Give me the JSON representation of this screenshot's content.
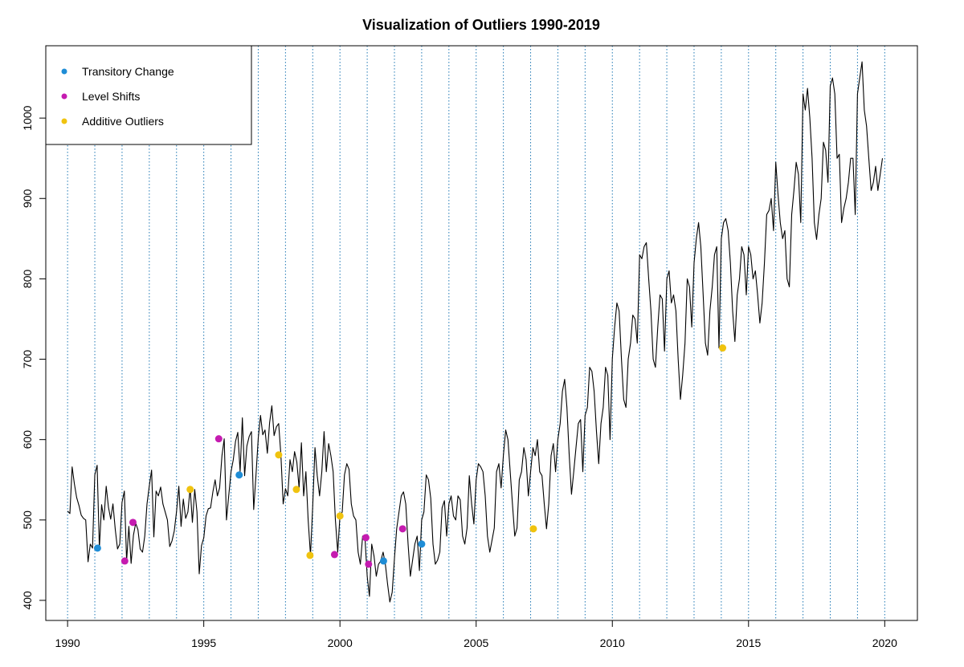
{
  "chart_data": {
    "type": "line",
    "title": "Visualization of Outliers 1990-2019",
    "xlabel": "",
    "ylabel": "",
    "xlim": [
      1989.2,
      2021.2
    ],
    "ylim": [
      375,
      1090
    ],
    "x_ticks": [
      1990,
      1995,
      2000,
      2005,
      2010,
      2015,
      2020
    ],
    "y_ticks": [
      400,
      500,
      600,
      700,
      800,
      900,
      1000
    ],
    "vertical_gridlines": [
      1990,
      1991,
      1992,
      1993,
      1994,
      1995,
      1996,
      1997,
      1998,
      1999,
      2000,
      2001,
      2002,
      2003,
      2004,
      2005,
      2006,
      2007,
      2008,
      2009,
      2010,
      2011,
      2012,
      2013,
      2014,
      2015,
      2016,
      2017,
      2018,
      2019,
      2020
    ],
    "legend_position": "top-left",
    "series_color": "#000000",
    "gridline_color": "#1f78b4",
    "series_start": 1990.0,
    "series_step": 0.0833333,
    "series_values": [
      511,
      508,
      566,
      545,
      528,
      518,
      506,
      502,
      500,
      448,
      470,
      465,
      556,
      568,
      465,
      519,
      500,
      542,
      516,
      501,
      520,
      488,
      464,
      470,
      522,
      536,
      449,
      492,
      446,
      481,
      496,
      488,
      464,
      460,
      480,
      520,
      542,
      562,
      479,
      536,
      530,
      541,
      520,
      510,
      500,
      467,
      474,
      486,
      510,
      542,
      492,
      526,
      502,
      510,
      540,
      497,
      538,
      510,
      433,
      468,
      478,
      505,
      514,
      515,
      535,
      550,
      530,
      540,
      580,
      601,
      500,
      530,
      560,
      575,
      598,
      609,
      560,
      627,
      555,
      592,
      604,
      610,
      513,
      555,
      602,
      630,
      606,
      612,
      583,
      621,
      642,
      605,
      616,
      620,
      580,
      520,
      539,
      530,
      575,
      560,
      585,
      572,
      540,
      596,
      530,
      560,
      500,
      456,
      518,
      590,
      555,
      530,
      560,
      610,
      560,
      595,
      580,
      560,
      500,
      460,
      505,
      510,
      556,
      570,
      563,
      520,
      505,
      500,
      460,
      445,
      480,
      478,
      430,
      405,
      470,
      455,
      430,
      445,
      449,
      460,
      445,
      420,
      398,
      410,
      452,
      489,
      510,
      530,
      535,
      520,
      470,
      430,
      450,
      470,
      480,
      437,
      500,
      510,
      556,
      550,
      527,
      470,
      445,
      450,
      460,
      515,
      524,
      480,
      520,
      530,
      505,
      500,
      530,
      525,
      480,
      470,
      490,
      555,
      520,
      495,
      550,
      570,
      566,
      560,
      530,
      480,
      460,
      475,
      490,
      560,
      570,
      540,
      580,
      612,
      600,
      560,
      520,
      480,
      490,
      550,
      560,
      590,
      575,
      530,
      560,
      590,
      580,
      600,
      560,
      555,
      520,
      489,
      520,
      580,
      595,
      560,
      600,
      620,
      660,
      675,
      640,
      580,
      532,
      560,
      590,
      620,
      625,
      560,
      630,
      640,
      690,
      685,
      660,
      610,
      570,
      620,
      640,
      690,
      680,
      600,
      700,
      740,
      770,
      760,
      700,
      650,
      640,
      700,
      720,
      755,
      750,
      720,
      830,
      825,
      840,
      845,
      800,
      760,
      700,
      690,
      740,
      780,
      775,
      710,
      800,
      810,
      770,
      780,
      760,
      700,
      650,
      680,
      720,
      800,
      790,
      740,
      820,
      850,
      870,
      840,
      780,
      720,
      705,
      760,
      790,
      830,
      840,
      714,
      850,
      870,
      875,
      860,
      820,
      760,
      722,
      780,
      800,
      840,
      830,
      780,
      840,
      830,
      800,
      810,
      780,
      745,
      770,
      820,
      880,
      885,
      900,
      860,
      945,
      905,
      870,
      850,
      860,
      800,
      790,
      880,
      910,
      945,
      930,
      870,
      1030,
      1010,
      1037,
      1000,
      950,
      870,
      849,
      880,
      900,
      970,
      960,
      920,
      1040,
      1050,
      1030,
      950,
      955,
      870,
      888,
      900,
      920,
      950,
      950,
      880,
      1030,
      1050,
      1070,
      1010,
      990,
      950,
      910,
      920,
      940,
      910,
      930,
      950
    ],
    "series": [
      {
        "name": "Transitory Change",
        "color": "#1f8dd6",
        "points": [
          [
            1991.1,
            465
          ],
          [
            1996.3,
            556
          ],
          [
            2001.6,
            449
          ],
          [
            2003.0,
            470
          ]
        ]
      },
      {
        "name": "Level Shifts",
        "color": "#c51bb0",
        "points": [
          [
            1992.1,
            449
          ],
          [
            1992.4,
            497
          ],
          [
            1995.55,
            601
          ],
          [
            1999.8,
            457
          ],
          [
            2000.95,
            478
          ],
          [
            2001.05,
            445
          ],
          [
            2002.3,
            489
          ]
        ]
      },
      {
        "name": "Additive Outliers",
        "color": "#f0c30f",
        "points": [
          [
            1994.5,
            538
          ],
          [
            1997.75,
            581
          ],
          [
            1998.4,
            538
          ],
          [
            1998.9,
            456
          ],
          [
            2000.0,
            505
          ],
          [
            2007.1,
            489
          ],
          [
            2014.05,
            714
          ]
        ]
      }
    ]
  }
}
